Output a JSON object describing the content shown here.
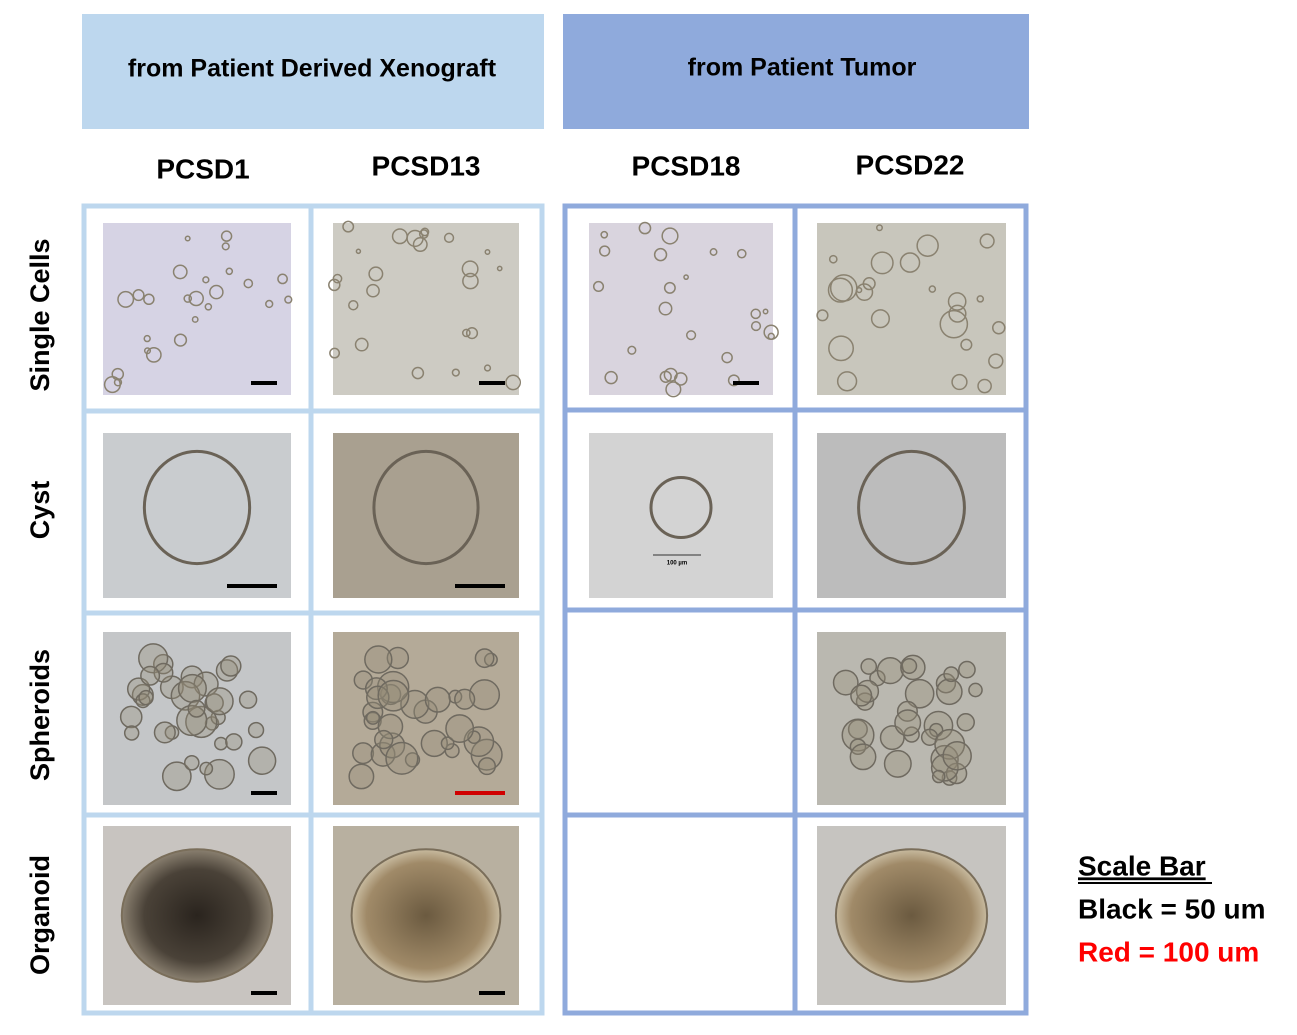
{
  "groups": [
    {
      "label": "from Patient Derived Xenograft"
    },
    {
      "label": "from Patient Tumor"
    }
  ],
  "columns": [
    "PCSD1",
    "PCSD13",
    "PCSD18",
    "PCSD22"
  ],
  "rows": [
    "Single Cells",
    "Cyst",
    "Spheroids",
    "Organoid"
  ],
  "inset_label": "100 µm",
  "legend": {
    "title": "Scale Bar",
    "black": "Black = 50 um",
    "red": "Red = 100 um"
  }
}
